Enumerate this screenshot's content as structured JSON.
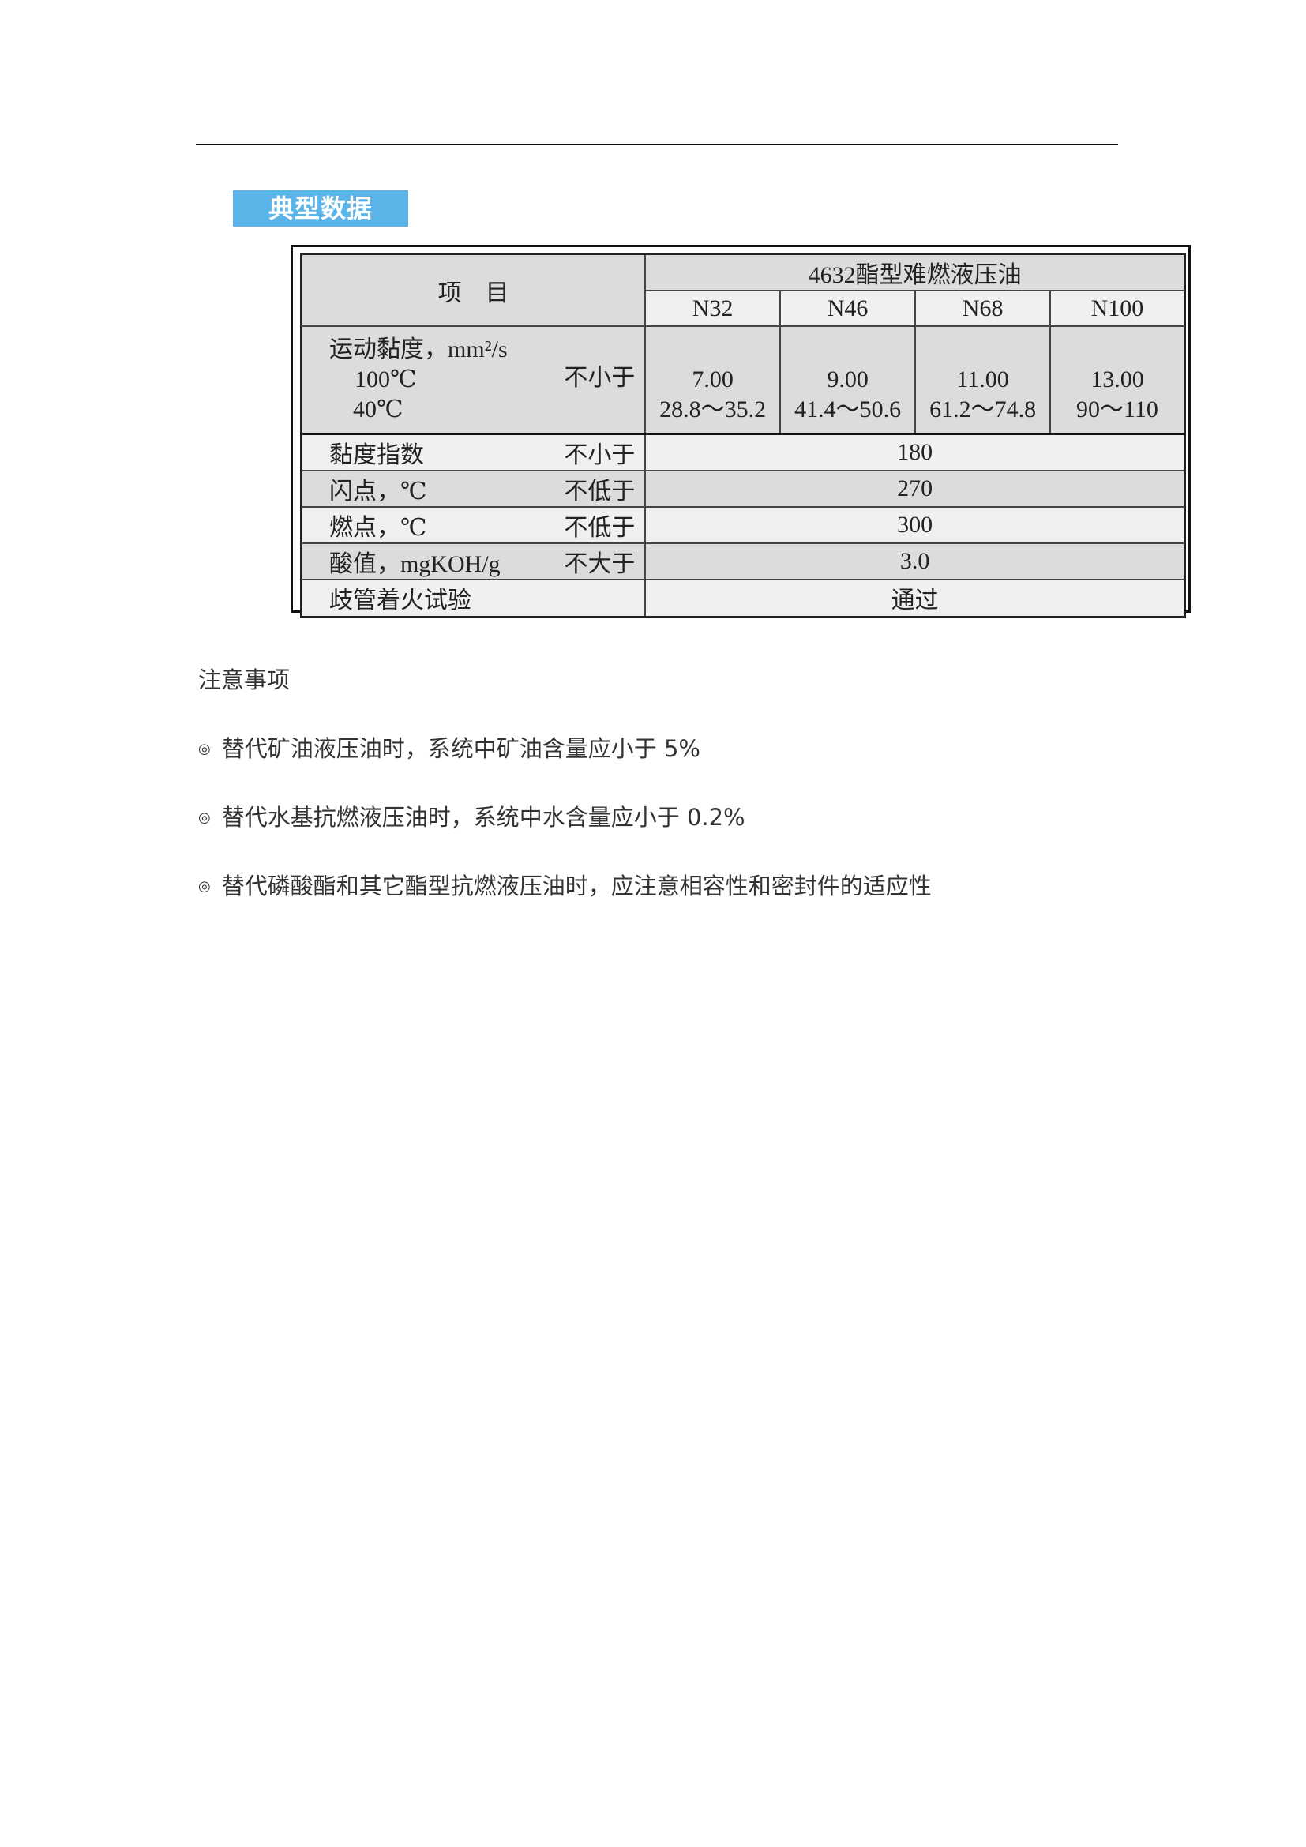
{
  "section_title": "典型数据",
  "table": {
    "item_header": "项　目",
    "product_header": "4632酯型难燃液压油",
    "grades": [
      "N32",
      "N46",
      "N68",
      "N100"
    ],
    "viscosity": {
      "label": "运动黏度，mm²/s",
      "sub_100": "100℃",
      "sub_40": "40℃",
      "req": "不小于",
      "values_100": [
        "7.00",
        "9.00",
        "11.00",
        "13.00"
      ],
      "values_40": [
        "28.8～35.2",
        "41.4～50.6",
        "61.2～74.8",
        "90～110"
      ]
    },
    "rows": [
      {
        "label": "黏度指数",
        "req": "不小于",
        "value": "180"
      },
      {
        "label": "闪点，℃",
        "req": "不低于",
        "value": "270"
      },
      {
        "label": "燃点，℃",
        "req": "不低于",
        "value": "300"
      },
      {
        "label": "酸值，mgKOH/g",
        "req": "不大于",
        "value": "3.0"
      },
      {
        "label": "歧管着火试验",
        "req": "",
        "value": "通过"
      }
    ]
  },
  "notes": {
    "title": "注意事项",
    "bullet_icon": "◎",
    "items": [
      "替代矿油液压油时，系统中矿油含量应小于 5%",
      "替代水基抗燃液压油时，系统中水含量应小于 0.2%",
      "替代磷酸酯和其它酯型抗燃液压油时，应注意相容性和密封件的适应性"
    ]
  }
}
